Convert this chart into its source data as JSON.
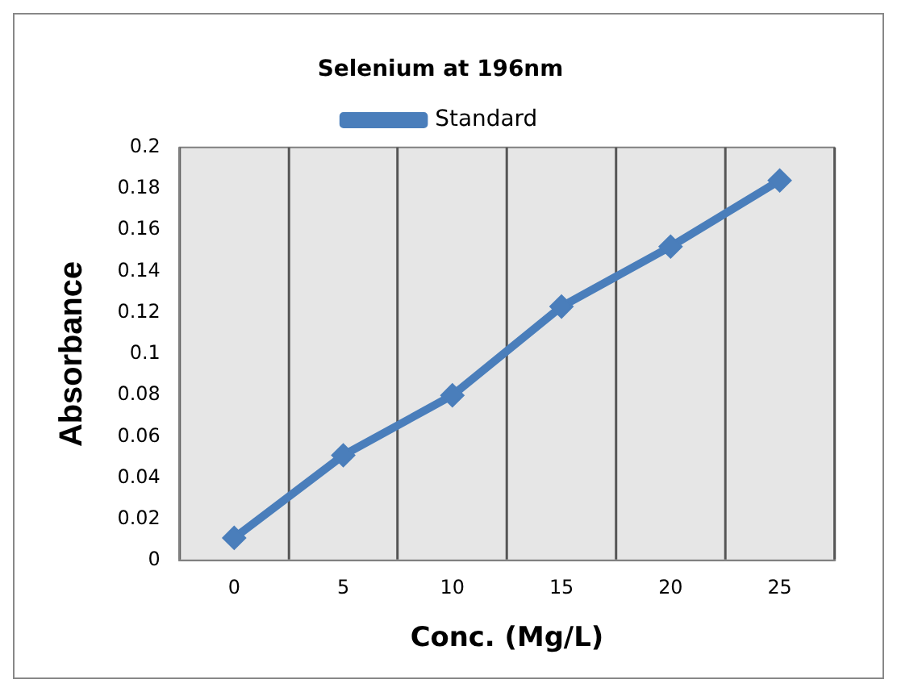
{
  "chart_data": {
    "type": "line",
    "title": "Selenium at 196nm",
    "xlabel": "Conc. (Mg/L)",
    "ylabel": "Absorbance",
    "categories": [
      "0",
      "5",
      "10",
      "15",
      "20",
      "25"
    ],
    "series": [
      {
        "name": "Standard",
        "color": "#4a7ebb",
        "values": [
          0.011,
          0.051,
          0.08,
          0.123,
          0.152,
          0.184
        ]
      }
    ],
    "ylim": [
      0,
      0.2
    ],
    "yticks": [
      0,
      0.02,
      0.04,
      0.06,
      0.08,
      0.1,
      0.12,
      0.14,
      0.16,
      0.18,
      0.2
    ],
    "grid": "x",
    "legend": "top",
    "marker": "diamond",
    "line_style": "solid"
  }
}
